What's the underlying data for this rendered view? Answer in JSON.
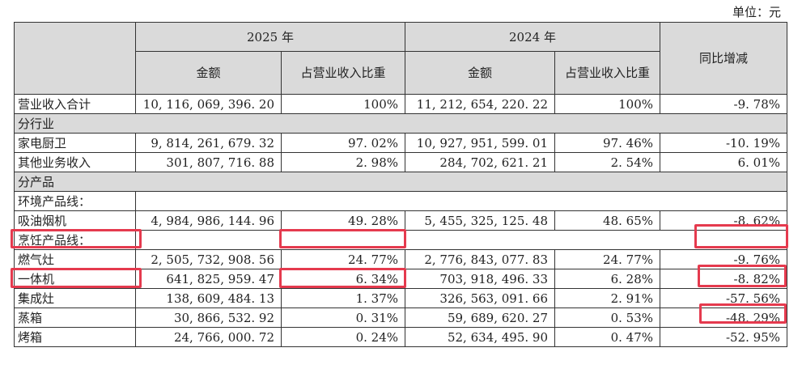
{
  "unit_label": "单位：元",
  "header": {
    "year_2025": "2025 年",
    "year_2024": "2024 年",
    "amount": "金额",
    "ratio_2025": "占营业收入比重",
    "ratio_2024": "占营业收入比重",
    "yoy": "同比增减"
  },
  "rows": {
    "total": {
      "name": "营业收入合计",
      "a25": "10, 116, 069, 396. 20",
      "p25": "100%",
      "a24": "11, 212, 654, 220. 22",
      "p24": "100%",
      "yoy": "-9. 78%"
    },
    "sec_industry": "分行业",
    "kitchen": {
      "name": "家电厨卫",
      "a25": "9, 814, 261, 679. 32",
      "p25": "97. 02%",
      "a24": "10, 927, 951, 599. 01",
      "p24": "97. 46%",
      "yoy": "-10. 19%"
    },
    "other": {
      "name": "其他业务收入",
      "a25": "301, 807, 716. 88",
      "p25": "2. 98%",
      "a24": "284, 702, 621. 21",
      "p24": "2. 54%",
      "yoy": "6. 01%"
    },
    "sec_product": "分产品",
    "env_line": "环境产品线：",
    "hood": {
      "name": "吸油烟机",
      "a25": "4, 984, 986, 144. 96",
      "p25": "49. 28%",
      "a24": "5, 455, 325, 125. 48",
      "p24": "48. 65%",
      "yoy": "-8. 62%"
    },
    "cook_line": "烹饪产品线：",
    "stove": {
      "name": "燃气灶",
      "a25": "2, 505, 732, 908. 56",
      "p25": "24. 77%",
      "a24": "2, 776, 843, 077. 83",
      "p24": "24. 77%",
      "yoy": "-9. 76%"
    },
    "combo": {
      "name": "一体机",
      "a25": "641, 825, 959. 47",
      "p25": "6. 34%",
      "a24": "703, 918, 496. 33",
      "p24": "6. 28%",
      "yoy": "-8. 82%"
    },
    "integrated": {
      "name": "集成灶",
      "a25": "138, 609, 484. 13",
      "p25": "1. 37%",
      "a24": "326, 563, 091. 66",
      "p24": "2. 91%",
      "yoy": "-57. 56%"
    },
    "steamer": {
      "name": "蒸箱",
      "a25": "30, 866, 532. 92",
      "p25": "0. 31%",
      "a24": "59, 689, 620. 27",
      "p24": "0. 53%",
      "yoy": "-48. 29%"
    },
    "oven": {
      "name": "烤箱",
      "a25": "24, 766, 000. 72",
      "p25": "0. 24%",
      "a24": "52, 634, 495. 90",
      "p24": "0. 47%",
      "yoy": "-52. 95%"
    }
  },
  "colors": {
    "header_fill": "#dadada",
    "highlight": "#e53a4e",
    "border": "#333333"
  }
}
